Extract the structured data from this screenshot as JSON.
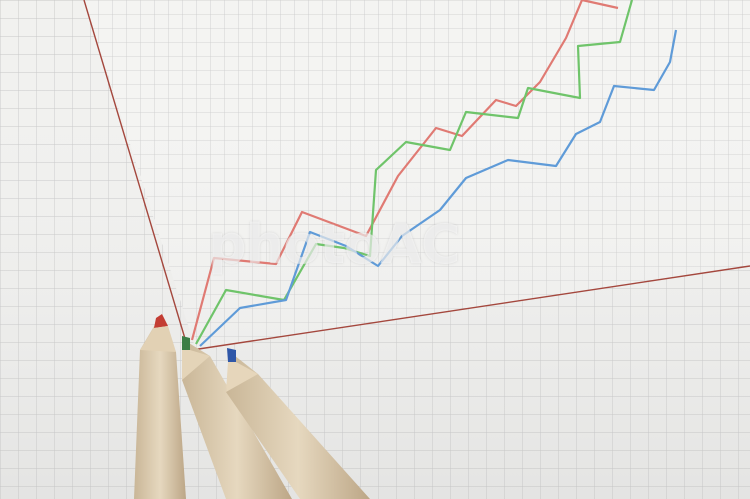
{
  "watermark": {
    "text": "photoAC"
  },
  "colors": {
    "paper": "#f4f4f2",
    "grid": "#c8c8c8",
    "axis": "#a4473d",
    "red_line": "#e07a73",
    "green_line": "#6fc46a",
    "blue_line": "#5f9bd8",
    "pencil_wood": "#d9c9ae"
  },
  "objects": [
    "graph-paper",
    "hand-drawn-line-chart-red",
    "hand-drawn-line-chart-green",
    "hand-drawn-line-chart-blue",
    "colored-pencil-red",
    "colored-pencil-green",
    "colored-pencil-blue"
  ]
}
